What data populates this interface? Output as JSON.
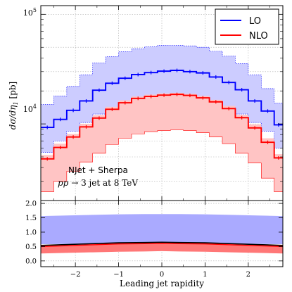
{
  "chart_data": [
    {
      "panel": "main",
      "type": "line",
      "style": "step histogram with shaded uncertainty bands",
      "xlabel": "Leading jet rapidity",
      "ylabel": "dσ/dη_1 [pb]",
      "ylabel_parts": {
        "base": "dσ/dη",
        "sub": "1",
        "unit": " [pb]"
      },
      "xlim": [
        -2.8,
        2.8
      ],
      "ylim": [
        2000,
        120000
      ],
      "yscale": "log",
      "xticks": [
        -2,
        -1,
        0,
        1,
        2
      ],
      "yticks": [
        {
          "label_base": "10",
          "label_exp": "4",
          "value": 10000
        },
        {
          "label_base": "10",
          "label_exp": "5",
          "value": 100000
        }
      ],
      "grid": true,
      "legend": {
        "position": "top-right",
        "entries": [
          "LO",
          "NLO"
        ]
      },
      "annotations": [
        {
          "text": "NJet + Sherpa"
        },
        {
          "text": "pp → 3 jet at 8 TeV",
          "parts": {
            "pp": "pp",
            "arrow": " → ",
            "rest": "3 jet at 8 TeV"
          }
        }
      ],
      "bin_edges": [
        -2.8,
        -2.5,
        -2.2,
        -1.9,
        -1.6,
        -1.3,
        -1.0,
        -0.7,
        -0.4,
        -0.1,
        0.2,
        0.5,
        0.8,
        1.1,
        1.4,
        1.7,
        2.0,
        2.3,
        2.6,
        2.8
      ],
      "series": [
        {
          "name": "LO",
          "color": "#0000ff",
          "band_color": "#ccccff",
          "values": [
            9300,
            11000,
            13300,
            16200,
            20300,
            23500,
            26100,
            28200,
            29400,
            30300,
            30800,
            30000,
            29200,
            26800,
            23900,
            20500,
            16200,
            13100,
            9800
          ],
          "band_upper": [
            15000,
            18000,
            22000,
            28000,
            36000,
            41000,
            45500,
            48500,
            50500,
            52000,
            52000,
            51500,
            50000,
            46000,
            41500,
            35500,
            28000,
            21000,
            15500
          ],
          "band_lower": [
            5500,
            7000,
            8600,
            10300,
            12300,
            13800,
            15200,
            16400,
            17100,
            17500,
            17600,
            17400,
            16900,
            15700,
            14100,
            12300,
            10300,
            8600,
            6000
          ]
        },
        {
          "name": "NLO",
          "color": "#ff0000",
          "band_color": "#ffc4c4",
          "values": [
            4800,
            6100,
            7600,
            9400,
            11300,
            13600,
            15600,
            17100,
            17800,
            18300,
            18600,
            18200,
            17300,
            15900,
            13800,
            11400,
            9200,
            6800,
            4900
          ],
          "band_upper": [
            5200,
            6600,
            8100,
            10000,
            12000,
            14300,
            16400,
            17800,
            18500,
            19000,
            19200,
            18800,
            18000,
            16600,
            14600,
            12100,
            9900,
            7400,
            5300
          ],
          "band_lower": [
            2400,
            3000,
            3700,
            4500,
            5400,
            6500,
            7400,
            8100,
            8500,
            8700,
            8800,
            8700,
            8300,
            7600,
            6600,
            5400,
            4400,
            3200,
            2400
          ]
        }
      ]
    },
    {
      "panel": "ratio",
      "type": "area",
      "xlim": [
        -2.8,
        2.8
      ],
      "ylim": [
        -0.2,
        2.1
      ],
      "xticks": [
        -2,
        -1,
        0,
        1,
        2
      ],
      "yticks": [
        0.0,
        0.5,
        1.0,
        1.5,
        2.0
      ],
      "ytick_labels": [
        "0.0",
        "0.5",
        "1.0",
        "1.5",
        "2.0"
      ],
      "grid": true,
      "x": [
        -2.8,
        -2.2,
        -1.6,
        -1.0,
        -0.4,
        0.0,
        0.4,
        1.0,
        1.6,
        2.2,
        2.8
      ],
      "series": [
        {
          "name": "LO",
          "color": "#0000ff",
          "band_color": "#aaaaff",
          "center": [
            1.0,
            1.0,
            1.0,
            1.0,
            1.0,
            1.0,
            1.0,
            1.0,
            1.0,
            1.0,
            1.0
          ],
          "upper": [
            1.56,
            1.58,
            1.6,
            1.62,
            1.63,
            1.63,
            1.63,
            1.62,
            1.6,
            1.58,
            1.56
          ],
          "lower": [
            0.58,
            0.59,
            0.6,
            0.61,
            0.62,
            0.62,
            0.62,
            0.61,
            0.6,
            0.59,
            0.58
          ]
        },
        {
          "name": "NLO",
          "color": "#ff0000",
          "band_color": "#ff7777",
          "center": [
            0.5,
            0.53,
            0.56,
            0.59,
            0.6,
            0.61,
            0.6,
            0.59,
            0.56,
            0.53,
            0.5
          ],
          "upper": [
            0.54,
            0.57,
            0.6,
            0.63,
            0.64,
            0.65,
            0.64,
            0.63,
            0.6,
            0.57,
            0.54
          ],
          "lower": [
            0.26,
            0.28,
            0.3,
            0.32,
            0.33,
            0.34,
            0.33,
            0.32,
            0.3,
            0.28,
            0.26
          ]
        }
      ]
    }
  ]
}
